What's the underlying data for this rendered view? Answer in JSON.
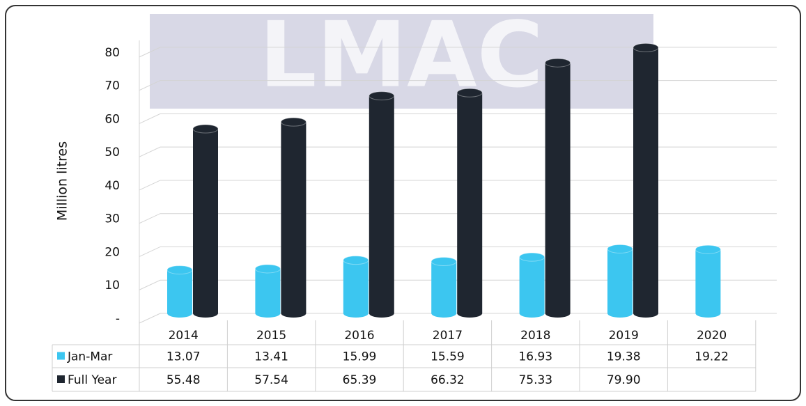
{
  "chart_data": {
    "type": "bar",
    "watermark": "LMAC",
    "y_label": "Million litres",
    "categories": [
      "2014",
      "2015",
      "2016",
      "2017",
      "2018",
      "2019",
      "2020"
    ],
    "series": [
      {
        "name": "Jan-Mar",
        "color": "#3cc6f0",
        "values": [
          13.07,
          13.41,
          15.99,
          15.59,
          16.93,
          19.38,
          19.22
        ],
        "value_labels": [
          "13.07",
          "13.41",
          "15.99",
          "15.59",
          "16.93",
          "19.38",
          "19.22"
        ]
      },
      {
        "name": "Full Year",
        "color": "#1f2630",
        "values": [
          55.48,
          57.54,
          65.39,
          66.32,
          75.33,
          79.9,
          null
        ],
        "value_labels": [
          "55.48",
          "57.54",
          "65.39",
          "66.32",
          "75.33",
          "79.90",
          null
        ]
      }
    ],
    "ylim": [
      0,
      85
    ],
    "yticks": [
      {
        "value": 0,
        "label": "-"
      },
      10,
      20,
      30,
      40,
      50,
      60,
      70,
      80
    ],
    "grid": true
  }
}
